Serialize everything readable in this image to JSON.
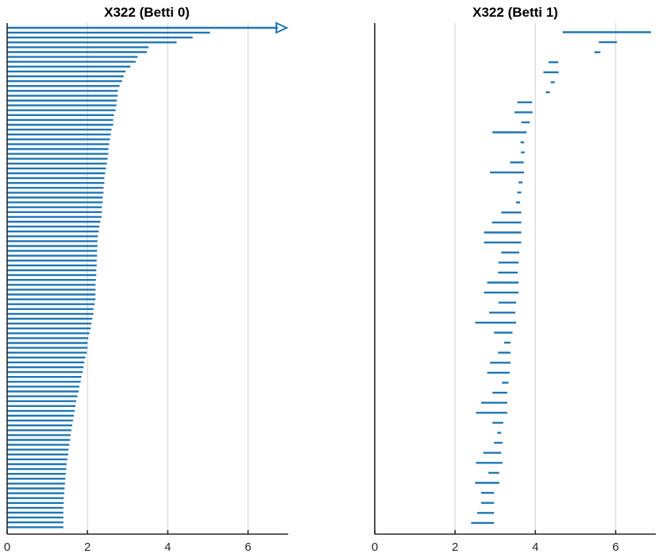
{
  "chart_data": [
    {
      "type": "barcode",
      "title": "X322 (Betti 0)",
      "xlim": [
        0,
        7
      ],
      "xticks": [
        0,
        2,
        4,
        6
      ],
      "xtick_labels": [
        "0",
        "2",
        "4",
        "6"
      ],
      "grid": true,
      "color": "#1f77b4",
      "infinite_bar": {
        "birth": 0,
        "death": "Inf"
      },
      "intervals": [
        [
          0,
          5.05
        ],
        [
          0,
          4.62
        ],
        [
          0,
          4.22
        ],
        [
          0,
          3.52
        ],
        [
          0,
          3.48
        ],
        [
          0,
          3.25
        ],
        [
          0,
          3.2
        ],
        [
          0,
          3.07
        ],
        [
          0,
          2.95
        ],
        [
          0,
          2.9
        ],
        [
          0,
          2.86
        ],
        [
          0,
          2.8
        ],
        [
          0,
          2.76
        ],
        [
          0,
          2.75
        ],
        [
          0,
          2.73
        ],
        [
          0,
          2.72
        ],
        [
          0,
          2.7
        ],
        [
          0,
          2.66
        ],
        [
          0,
          2.64
        ],
        [
          0,
          2.64
        ],
        [
          0,
          2.6
        ],
        [
          0,
          2.58
        ],
        [
          0,
          2.56
        ],
        [
          0,
          2.54
        ],
        [
          0,
          2.52
        ],
        [
          0,
          2.52
        ],
        [
          0,
          2.5
        ],
        [
          0,
          2.48
        ],
        [
          0,
          2.46
        ],
        [
          0,
          2.44
        ],
        [
          0,
          2.42
        ],
        [
          0,
          2.42
        ],
        [
          0,
          2.4
        ],
        [
          0,
          2.4
        ],
        [
          0,
          2.38
        ],
        [
          0,
          2.38
        ],
        [
          0,
          2.36
        ],
        [
          0,
          2.36
        ],
        [
          0,
          2.35
        ],
        [
          0,
          2.32
        ],
        [
          0,
          2.3
        ],
        [
          0,
          2.28
        ],
        [
          0,
          2.26
        ],
        [
          0,
          2.25
        ],
        [
          0,
          2.25
        ],
        [
          0,
          2.24
        ],
        [
          0,
          2.24
        ],
        [
          0,
          2.23
        ],
        [
          0,
          2.23
        ],
        [
          0,
          2.22
        ],
        [
          0,
          2.22
        ],
        [
          0,
          2.21
        ],
        [
          0,
          2.2
        ],
        [
          0,
          2.2
        ],
        [
          0,
          2.2
        ],
        [
          0,
          2.2
        ],
        [
          0,
          2.18
        ],
        [
          0,
          2.15
        ],
        [
          0,
          2.15
        ],
        [
          0,
          2.12
        ],
        [
          0,
          2.1
        ],
        [
          0,
          2.08
        ],
        [
          0,
          2.05
        ],
        [
          0,
          2.02
        ],
        [
          0,
          2.0
        ],
        [
          0,
          2.0
        ],
        [
          0,
          1.98
        ],
        [
          0,
          1.95
        ],
        [
          0,
          1.92
        ],
        [
          0,
          1.9
        ],
        [
          0,
          1.88
        ],
        [
          0,
          1.85
        ],
        [
          0,
          1.83
        ],
        [
          0,
          1.8
        ],
        [
          0,
          1.78
        ],
        [
          0,
          1.75
        ],
        [
          0,
          1.72
        ],
        [
          0,
          1.7
        ],
        [
          0,
          1.68
        ],
        [
          0,
          1.66
        ],
        [
          0,
          1.64
        ],
        [
          0,
          1.62
        ],
        [
          0,
          1.6
        ],
        [
          0,
          1.58
        ],
        [
          0,
          1.57
        ],
        [
          0,
          1.55
        ],
        [
          0,
          1.53
        ],
        [
          0,
          1.52
        ],
        [
          0,
          1.5
        ],
        [
          0,
          1.48
        ],
        [
          0,
          1.47
        ],
        [
          0,
          1.46
        ],
        [
          0,
          1.45
        ],
        [
          0,
          1.44
        ],
        [
          0,
          1.43
        ],
        [
          0,
          1.42
        ],
        [
          0,
          1.41
        ],
        [
          0,
          1.41
        ],
        [
          0,
          1.4
        ],
        [
          0,
          1.4
        ],
        [
          0,
          1.4
        ],
        [
          0,
          1.4
        ],
        [
          0,
          1.4
        ]
      ]
    },
    {
      "type": "barcode",
      "title": "X322 (Betti 1)",
      "xlim": [
        0,
        7
      ],
      "xticks": [
        0,
        2,
        4,
        6
      ],
      "xtick_labels": [
        "0",
        "2",
        "4",
        "6"
      ],
      "grid": true,
      "color": "#1f77b4",
      "intervals": [
        [
          4.68,
          6.88
        ],
        [
          5.58,
          6.03
        ],
        [
          5.47,
          5.62
        ],
        [
          4.33,
          4.57
        ],
        [
          4.2,
          4.58
        ],
        [
          4.38,
          4.48
        ],
        [
          4.26,
          4.36
        ],
        [
          3.55,
          3.92
        ],
        [
          3.48,
          3.93
        ],
        [
          3.65,
          3.86
        ],
        [
          2.93,
          3.78
        ],
        [
          3.63,
          3.72
        ],
        [
          3.64,
          3.73
        ],
        [
          3.37,
          3.71
        ],
        [
          2.87,
          3.72
        ],
        [
          3.58,
          3.68
        ],
        [
          3.55,
          3.65
        ],
        [
          3.52,
          3.62
        ],
        [
          3.15,
          3.65
        ],
        [
          2.92,
          3.65
        ],
        [
          2.72,
          3.65
        ],
        [
          2.72,
          3.65
        ],
        [
          3.15,
          3.6
        ],
        [
          3.08,
          3.58
        ],
        [
          3.07,
          3.56
        ],
        [
          2.8,
          3.58
        ],
        [
          2.72,
          3.58
        ],
        [
          3.08,
          3.52
        ],
        [
          2.85,
          3.5
        ],
        [
          2.5,
          3.52
        ],
        [
          2.97,
          3.43
        ],
        [
          3.22,
          3.38
        ],
        [
          3.07,
          3.38
        ],
        [
          2.87,
          3.38
        ],
        [
          2.8,
          3.36
        ],
        [
          3.17,
          3.33
        ],
        [
          2.93,
          3.3
        ],
        [
          2.65,
          3.3
        ],
        [
          2.52,
          3.3
        ],
        [
          2.93,
          3.2
        ],
        [
          3.05,
          3.15
        ],
        [
          2.97,
          3.18
        ],
        [
          2.7,
          3.15
        ],
        [
          2.52,
          3.18
        ],
        [
          2.83,
          3.1
        ],
        [
          2.5,
          3.1
        ],
        [
          2.65,
          2.97
        ],
        [
          2.65,
          2.97
        ],
        [
          2.55,
          2.97
        ],
        [
          2.4,
          2.97
        ]
      ]
    }
  ]
}
